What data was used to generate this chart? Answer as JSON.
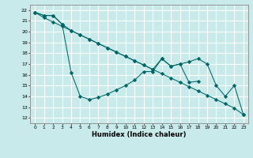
{
  "x_all": [
    0,
    1,
    2,
    3,
    4,
    5,
    6,
    7,
    8,
    9,
    10,
    11,
    12,
    13,
    14,
    15,
    16,
    17,
    18,
    19,
    20,
    21,
    22,
    23
  ],
  "line_zigzag": [
    21.8,
    21.5,
    21.5,
    20.7,
    16.2,
    14.0,
    13.7,
    13.9,
    14.2,
    14.6,
    15.0,
    15.5,
    16.3,
    16.3,
    17.5,
    16.8,
    17.0,
    15.3,
    15.4,
    null,
    null,
    null,
    null,
    null
  ],
  "line_straight": [
    21.8,
    21.3,
    20.9,
    20.5,
    20.1,
    19.7,
    19.3,
    18.9,
    18.5,
    18.1,
    17.7,
    17.3,
    16.9,
    16.5,
    16.1,
    15.7,
    15.3,
    14.9,
    14.5,
    14.1,
    13.7,
    13.3,
    12.9,
    12.3
  ],
  "line_upper": [
    21.8,
    21.5,
    21.5,
    20.7,
    20.1,
    19.7,
    19.3,
    18.9,
    18.5,
    18.1,
    17.7,
    17.3,
    16.9,
    16.5,
    17.5,
    16.8,
    17.0,
    17.2,
    17.5,
    17.0,
    15.0,
    14.0,
    15.0,
    12.3
  ],
  "color": "#006666",
  "bg_color": "#c8eaea",
  "grid_color": "#ffffff",
  "xlabel": "Humidex (Indice chaleur)",
  "ylabel_ticks": [
    12,
    13,
    14,
    15,
    16,
    17,
    18,
    19,
    20,
    21,
    22
  ],
  "xlim": [
    -0.5,
    23.5
  ],
  "ylim": [
    11.5,
    22.5
  ],
  "xticks": [
    0,
    1,
    2,
    3,
    4,
    5,
    6,
    7,
    8,
    9,
    10,
    11,
    12,
    13,
    14,
    15,
    16,
    17,
    18,
    19,
    20,
    21,
    22,
    23
  ],
  "marker": "D",
  "markersize": 2.2,
  "linewidth": 0.75
}
